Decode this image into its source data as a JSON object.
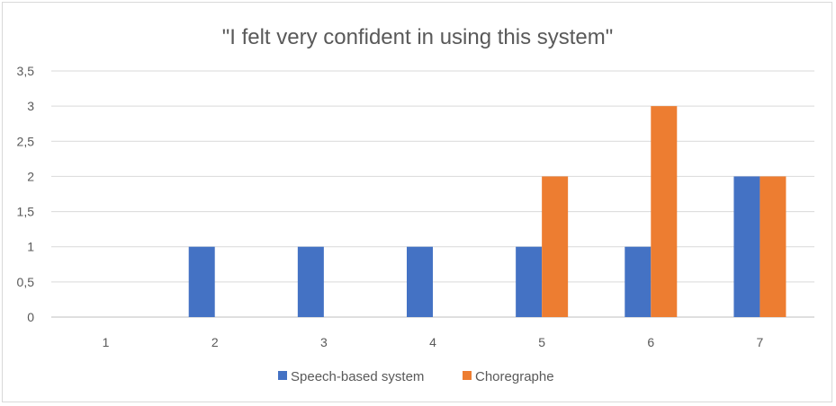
{
  "chart_data": {
    "type": "bar",
    "title": "\"I felt very confident in using this system\"",
    "xlabel": "",
    "ylabel": "",
    "categories": [
      "1",
      "2",
      "3",
      "4",
      "5",
      "6",
      "7"
    ],
    "ylim": [
      0,
      3.5
    ],
    "yticks": [
      "0",
      "0,5",
      "1",
      "1,5",
      "2",
      "2,5",
      "3",
      "3,5"
    ],
    "grid": true,
    "legend_position": "bottom",
    "series": [
      {
        "name": "Speech-based system",
        "color": "#4472c4",
        "values": [
          0,
          1,
          1,
          1,
          1,
          1,
          2
        ]
      },
      {
        "name": "Choregraphe",
        "color": "#ed7d31",
        "values": [
          0,
          0,
          0,
          0,
          2,
          3,
          2
        ]
      }
    ]
  }
}
